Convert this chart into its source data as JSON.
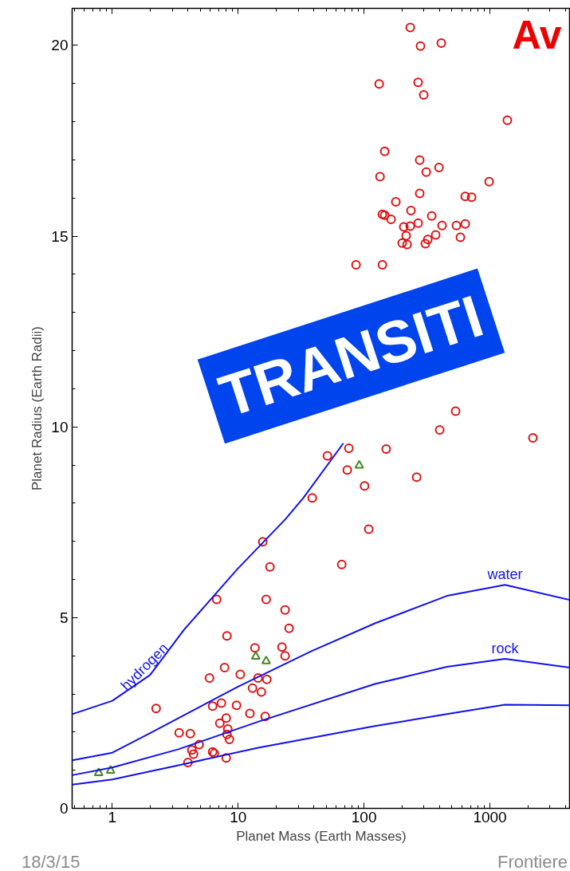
{
  "chart_data": {
    "type": "scatter",
    "xlabel": "Planet Mass (Earth Masses)",
    "ylabel": "Planet Radius (Earth Radii)",
    "log": "x",
    "xlim": [
      0.48,
      4360
    ],
    "ylim": [
      0,
      20.97
    ],
    "xticks": [
      1,
      10,
      100,
      1000
    ],
    "yticks": [
      0,
      5,
      10,
      15,
      20
    ],
    "grid": false,
    "annotations": [
      "Av",
      "TRANSITI",
      "18/3/15",
      "Frontiere"
    ],
    "series": [
      {
        "marker": "circle",
        "color": "#dd1111",
        "x": [
          109,
          15.7,
          66.5,
          17.9,
          6.75,
          16.7,
          23.6,
          25.4,
          8.15,
          13.6,
          22.3,
          23.6,
          7.8,
          5.92,
          10.4,
          14.4,
          16.9,
          13.0,
          15.3,
          2.23,
          6.27,
          7.36,
          9.71,
          12.4,
          16.4,
          8.04,
          7.15,
          8.27,
          8.15,
          8.52,
          3.4,
          4.17,
          4.9,
          4.29,
          4.42,
          6.27,
          6.46,
          3.99,
          8.04,
          233,
          281,
          411,
          132,
          269,
          298,
          1377,
          146,
          277,
          312,
          394,
          986,
          134,
          277,
          179,
          236,
          637,
          715,
          140,
          146,
          164,
          269,
          345,
          417,
          207,
          233,
          542,
          637,
          216,
          201,
          220,
          307,
          321,
          371,
          583,
          86.4,
          140,
          534,
          399,
          2197,
          51.2,
          75.8,
          150,
          73.6,
          101,
          262,
          38.8
        ],
        "values": [
          7.32,
          6.99,
          6.39,
          6.33,
          5.48,
          5.48,
          5.2,
          4.72,
          4.52,
          4.21,
          4.23,
          4.0,
          3.69,
          3.42,
          3.51,
          3.42,
          3.38,
          3.15,
          3.05,
          2.62,
          2.68,
          2.76,
          2.7,
          2.49,
          2.41,
          2.37,
          2.23,
          2.08,
          1.94,
          1.81,
          1.98,
          1.96,
          1.67,
          1.53,
          1.42,
          1.48,
          1.44,
          1.2,
          1.32,
          20.47,
          19.98,
          20.06,
          18.99,
          19.03,
          18.7,
          18.04,
          17.22,
          16.99,
          16.68,
          16.8,
          16.43,
          16.56,
          16.12,
          15.9,
          15.67,
          16.04,
          16.02,
          15.57,
          15.55,
          15.44,
          15.34,
          15.53,
          15.28,
          15.24,
          15.26,
          15.28,
          15.32,
          15.01,
          14.82,
          14.78,
          14.8,
          14.91,
          15.03,
          14.97,
          14.25,
          14.25,
          10.41,
          9.92,
          9.71,
          9.24,
          9.44,
          9.42,
          8.87,
          8.45,
          8.68,
          8.14
        ]
      },
      {
        "marker": "triangle",
        "color": "#448822",
        "x": [
          0.78,
          0.97,
          13.8,
          16.7,
          91.6
        ],
        "values": [
          0.93,
          0.99,
          3.98,
          3.86,
          8.99
        ]
      },
      {
        "type": "line",
        "name": "hydrogen",
        "color": "#1010ee",
        "x": [
          0.48,
          1,
          2,
          3.71,
          9.84,
          23.6,
          33,
          68.5
        ],
        "values": [
          2.47,
          2.82,
          3.5,
          4.68,
          6.27,
          7.57,
          8.14,
          9.57
        ]
      },
      {
        "type": "line",
        "name": "water",
        "color": "#1010ee",
        "x": [
          0.48,
          1,
          2.07,
          9.84,
          38.2,
          122,
          455,
          1318,
          4360
        ],
        "values": [
          1.26,
          1.46,
          2.0,
          3.18,
          4.12,
          4.85,
          5.57,
          5.86,
          5.46
        ]
      },
      {
        "type": "line",
        "name": "rock",
        "color": "#1010ee",
        "x": [
          0.48,
          1,
          3.35,
          14.4,
          122,
          455,
          1318,
          4360
        ],
        "values": [
          0.87,
          1.07,
          1.55,
          2.27,
          3.26,
          3.71,
          3.92,
          3.69
        ]
      },
      {
        "type": "line",
        "color": "#1010ee",
        "x": [
          0.48,
          1,
          3.35,
          14.4,
          122,
          455,
          1318,
          4360
        ],
        "values": [
          0.62,
          0.76,
          1.13,
          1.59,
          2.16,
          2.47,
          2.72,
          2.7
        ]
      }
    ]
  }
}
